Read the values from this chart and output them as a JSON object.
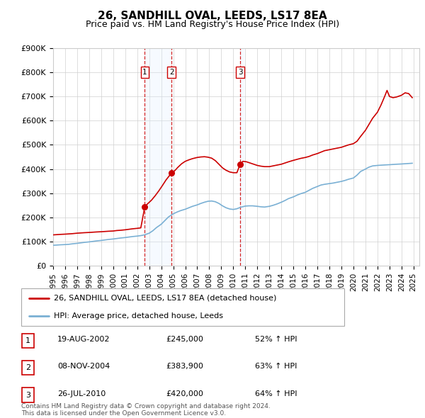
{
  "title": "26, SANDHILL OVAL, LEEDS, LS17 8EA",
  "subtitle": "Price paid vs. HM Land Registry's House Price Index (HPI)",
  "red_line_label": "26, SANDHILL OVAL, LEEDS, LS17 8EA (detached house)",
  "blue_line_label": "HPI: Average price, detached house, Leeds",
  "red_color": "#cc0000",
  "blue_color": "#7ab0d4",
  "shade_color": "#ddeeff",
  "ylim": [
    0,
    900000
  ],
  "yticks": [
    0,
    100000,
    200000,
    300000,
    400000,
    500000,
    600000,
    700000,
    800000,
    900000
  ],
  "ytick_labels": [
    "£0",
    "£100K",
    "£200K",
    "£300K",
    "£400K",
    "£500K",
    "£600K",
    "£700K",
    "£800K",
    "£900K"
  ],
  "xmin": 1995.0,
  "xmax": 2025.5,
  "xticks": [
    1995,
    1996,
    1997,
    1998,
    1999,
    2000,
    2001,
    2002,
    2003,
    2004,
    2005,
    2006,
    2007,
    2008,
    2009,
    2010,
    2011,
    2012,
    2013,
    2014,
    2015,
    2016,
    2017,
    2018,
    2019,
    2020,
    2021,
    2022,
    2023,
    2024,
    2025
  ],
  "sale_dates": [
    2002.635,
    2004.856,
    2010.567
  ],
  "sale_prices": [
    245000,
    383900,
    420000
  ],
  "sale_labels": [
    "1",
    "2",
    "3"
  ],
  "sale_date_strs": [
    "19-AUG-2002",
    "08-NOV-2004",
    "26-JUL-2010"
  ],
  "sale_price_strs": [
    "£245,000",
    "£383,900",
    "£420,000"
  ],
  "sale_pct_strs": [
    "52% ↑ HPI",
    "63% ↑ HPI",
    "64% ↑ HPI"
  ],
  "footer": "Contains HM Land Registry data © Crown copyright and database right 2024.\nThis data is licensed under the Open Government Licence v3.0.",
  "red_x": [
    1995.0,
    1995.3,
    1995.6,
    1996.0,
    1996.3,
    1996.6,
    1997.0,
    1997.3,
    1997.6,
    1998.0,
    1998.3,
    1998.6,
    1999.0,
    1999.3,
    1999.6,
    2000.0,
    2000.3,
    2000.6,
    2001.0,
    2001.3,
    2001.6,
    2002.0,
    2002.3,
    2002.635,
    2002.9,
    2003.2,
    2003.5,
    2003.8,
    2004.1,
    2004.4,
    2004.856,
    2005.1,
    2005.4,
    2005.7,
    2006.0,
    2006.3,
    2006.6,
    2007.0,
    2007.3,
    2007.6,
    2007.9,
    2008.2,
    2008.5,
    2008.8,
    2009.1,
    2009.4,
    2009.7,
    2010.0,
    2010.3,
    2010.567,
    2010.8,
    2011.1,
    2011.4,
    2011.7,
    2012.0,
    2012.3,
    2012.6,
    2013.0,
    2013.3,
    2013.6,
    2014.0,
    2014.3,
    2014.6,
    2015.0,
    2015.3,
    2015.6,
    2016.0,
    2016.3,
    2016.6,
    2017.0,
    2017.3,
    2017.6,
    2018.0,
    2018.3,
    2018.6,
    2019.0,
    2019.3,
    2019.6,
    2020.0,
    2020.3,
    2020.6,
    2021.0,
    2021.3,
    2021.6,
    2022.0,
    2022.3,
    2022.6,
    2022.8,
    2023.0,
    2023.3,
    2023.6,
    2024.0,
    2024.3,
    2024.6,
    2024.9
  ],
  "red_y": [
    128000,
    129000,
    130000,
    131000,
    132000,
    133000,
    135000,
    136000,
    137000,
    138000,
    139000,
    140000,
    141000,
    142000,
    143000,
    144000,
    146000,
    147000,
    149000,
    151000,
    153000,
    155000,
    157000,
    245000,
    258000,
    272000,
    290000,
    310000,
    332000,
    355000,
    383900,
    392000,
    408000,
    422000,
    432000,
    438000,
    443000,
    448000,
    450000,
    451000,
    449000,
    445000,
    435000,
    420000,
    405000,
    395000,
    388000,
    385000,
    385000,
    420000,
    432000,
    430000,
    425000,
    420000,
    415000,
    412000,
    410000,
    410000,
    413000,
    416000,
    420000,
    425000,
    430000,
    436000,
    440000,
    444000,
    448000,
    452000,
    458000,
    464000,
    470000,
    476000,
    480000,
    483000,
    486000,
    490000,
    495000,
    500000,
    505000,
    515000,
    535000,
    560000,
    585000,
    610000,
    635000,
    665000,
    700000,
    725000,
    700000,
    695000,
    698000,
    705000,
    715000,
    712000,
    695000
  ],
  "blue_x": [
    1995.0,
    1995.3,
    1995.6,
    1996.0,
    1996.3,
    1996.6,
    1997.0,
    1997.3,
    1997.6,
    1998.0,
    1998.3,
    1998.6,
    1999.0,
    1999.3,
    1999.6,
    2000.0,
    2000.3,
    2000.6,
    2001.0,
    2001.3,
    2001.6,
    2002.0,
    2002.3,
    2002.6,
    2003.0,
    2003.3,
    2003.6,
    2004.0,
    2004.3,
    2004.6,
    2005.0,
    2005.3,
    2005.6,
    2006.0,
    2006.3,
    2006.6,
    2007.0,
    2007.3,
    2007.6,
    2007.9,
    2008.2,
    2008.5,
    2008.8,
    2009.1,
    2009.4,
    2009.7,
    2010.0,
    2010.3,
    2010.6,
    2011.0,
    2011.3,
    2011.6,
    2012.0,
    2012.3,
    2012.6,
    2013.0,
    2013.3,
    2013.6,
    2014.0,
    2014.3,
    2014.6,
    2015.0,
    2015.3,
    2015.6,
    2016.0,
    2016.3,
    2016.6,
    2017.0,
    2017.3,
    2017.6,
    2018.0,
    2018.3,
    2018.6,
    2019.0,
    2019.3,
    2019.6,
    2020.0,
    2020.3,
    2020.6,
    2021.0,
    2021.3,
    2021.6,
    2022.0,
    2022.3,
    2022.6,
    2023.0,
    2023.3,
    2023.6,
    2024.0,
    2024.3,
    2024.6,
    2024.9
  ],
  "blue_y": [
    85000,
    86000,
    87000,
    88000,
    89000,
    91000,
    93000,
    95000,
    97000,
    99000,
    101000,
    103000,
    105000,
    107000,
    109000,
    111000,
    113000,
    115000,
    117000,
    119000,
    121000,
    123000,
    125000,
    128000,
    135000,
    145000,
    158000,
    172000,
    187000,
    202000,
    215000,
    222000,
    228000,
    234000,
    240000,
    246000,
    252000,
    258000,
    263000,
    267000,
    268000,
    265000,
    258000,
    248000,
    240000,
    235000,
    233000,
    236000,
    242000,
    247000,
    248000,
    248000,
    246000,
    244000,
    243000,
    246000,
    250000,
    255000,
    263000,
    270000,
    278000,
    285000,
    292000,
    298000,
    304000,
    312000,
    320000,
    328000,
    334000,
    337000,
    340000,
    342000,
    345000,
    349000,
    353000,
    358000,
    363000,
    375000,
    390000,
    400000,
    408000,
    413000,
    415000,
    416000,
    417000,
    418000,
    419000,
    420000,
    421000,
    422000,
    423000,
    424000
  ]
}
